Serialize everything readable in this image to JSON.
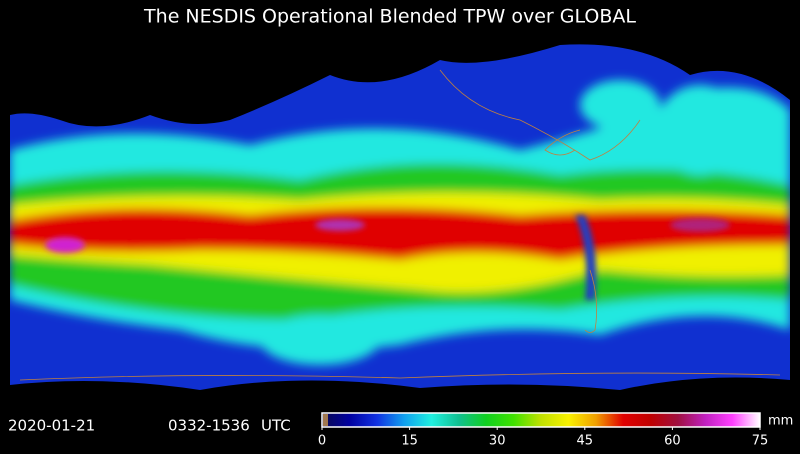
{
  "title": "The NESDIS Operational Blended TPW over GLOBAL",
  "timestamp": {
    "date": "2020-01-21",
    "time_range": "0332-1536",
    "zone": "UTC"
  },
  "colorbar": {
    "ticks": [
      0,
      15,
      30,
      45,
      60,
      75
    ],
    "range": [
      0,
      75
    ],
    "unit": "mm",
    "colors": [
      "#0a0a50",
      "#0000a0",
      "#1030e0",
      "#10a0f0",
      "#20f0e0",
      "#10c090",
      "#10d020",
      "#40e000",
      "#c0e000",
      "#f8f000",
      "#f0a000",
      "#e00000",
      "#c00000",
      "#a01040",
      "#c020c0",
      "#ff40ff",
      "#ffffff"
    ]
  }
}
